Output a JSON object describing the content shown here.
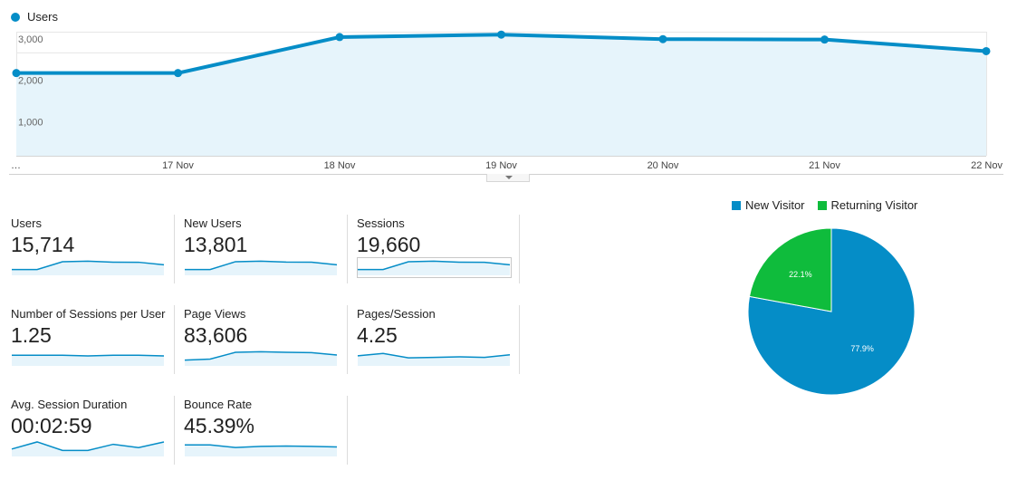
{
  "colors": {
    "primary": "#058dc7",
    "fill": "#e6f4fb",
    "new_visitor": "#058dc7",
    "returning_visitor": "#0fbc3c"
  },
  "chart_data": [
    {
      "type": "area",
      "series": [
        {
          "name": "Users",
          "values": [
            2000,
            2000,
            2870,
            2930,
            2820,
            2810,
            2530
          ]
        }
      ],
      "categories": [
        "…",
        "17 Nov",
        "18 Nov",
        "19 Nov",
        "20 Nov",
        "21 Nov",
        "22 Nov"
      ],
      "ylim": [
        0,
        3000
      ],
      "yticks": [
        "1,000",
        "2,000",
        "3,000"
      ],
      "ytick_values": [
        1000,
        2000,
        3000
      ],
      "grid": true,
      "legend": "top-left"
    },
    {
      "type": "pie",
      "labels": [
        "New Visitor",
        "Returning Visitor"
      ],
      "values": [
        77.9,
        22.1
      ],
      "value_labels": [
        "77.9%",
        "22.1%"
      ],
      "legend": "top"
    }
  ],
  "metrics": [
    {
      "label": "Users",
      "value": "15,714",
      "trend": [
        2000,
        2000,
        2870,
        2930,
        2820,
        2810,
        2530
      ],
      "selected": false
    },
    {
      "label": "New Users",
      "value": "13,801",
      "trend": [
        1760,
        1760,
        2520,
        2570,
        2480,
        2470,
        2220
      ],
      "selected": false
    },
    {
      "label": "Sessions",
      "value": "19,660",
      "trend": [
        2500,
        2500,
        3580,
        3660,
        3520,
        3510,
        3160
      ],
      "selected": true
    },
    {
      "label": "Number of Sessions per User",
      "value": "1.25",
      "trend": [
        1.25,
        1.25,
        1.25,
        1.24,
        1.25,
        1.25,
        1.24
      ],
      "selected": false
    },
    {
      "label": "Page Views",
      "value": "83,606",
      "trend": [
        9800,
        10500,
        15200,
        15600,
        15200,
        15000,
        13300
      ],
      "selected": false
    },
    {
      "label": "Pages/Session",
      "value": "4.25",
      "trend": [
        4.3,
        4.42,
        4.2,
        4.22,
        4.25,
        4.22,
        4.35
      ],
      "selected": false
    },
    {
      "label": "Avg. Session Duration",
      "value": "00:02:59",
      "trend": [
        175,
        190,
        172,
        172,
        185,
        178,
        190
      ],
      "selected": false
    },
    {
      "label": "Bounce Rate",
      "value": "45.39%",
      "trend": [
        46,
        46,
        44.6,
        45.2,
        45.4,
        45.2,
        44.9
      ],
      "selected": false
    }
  ]
}
